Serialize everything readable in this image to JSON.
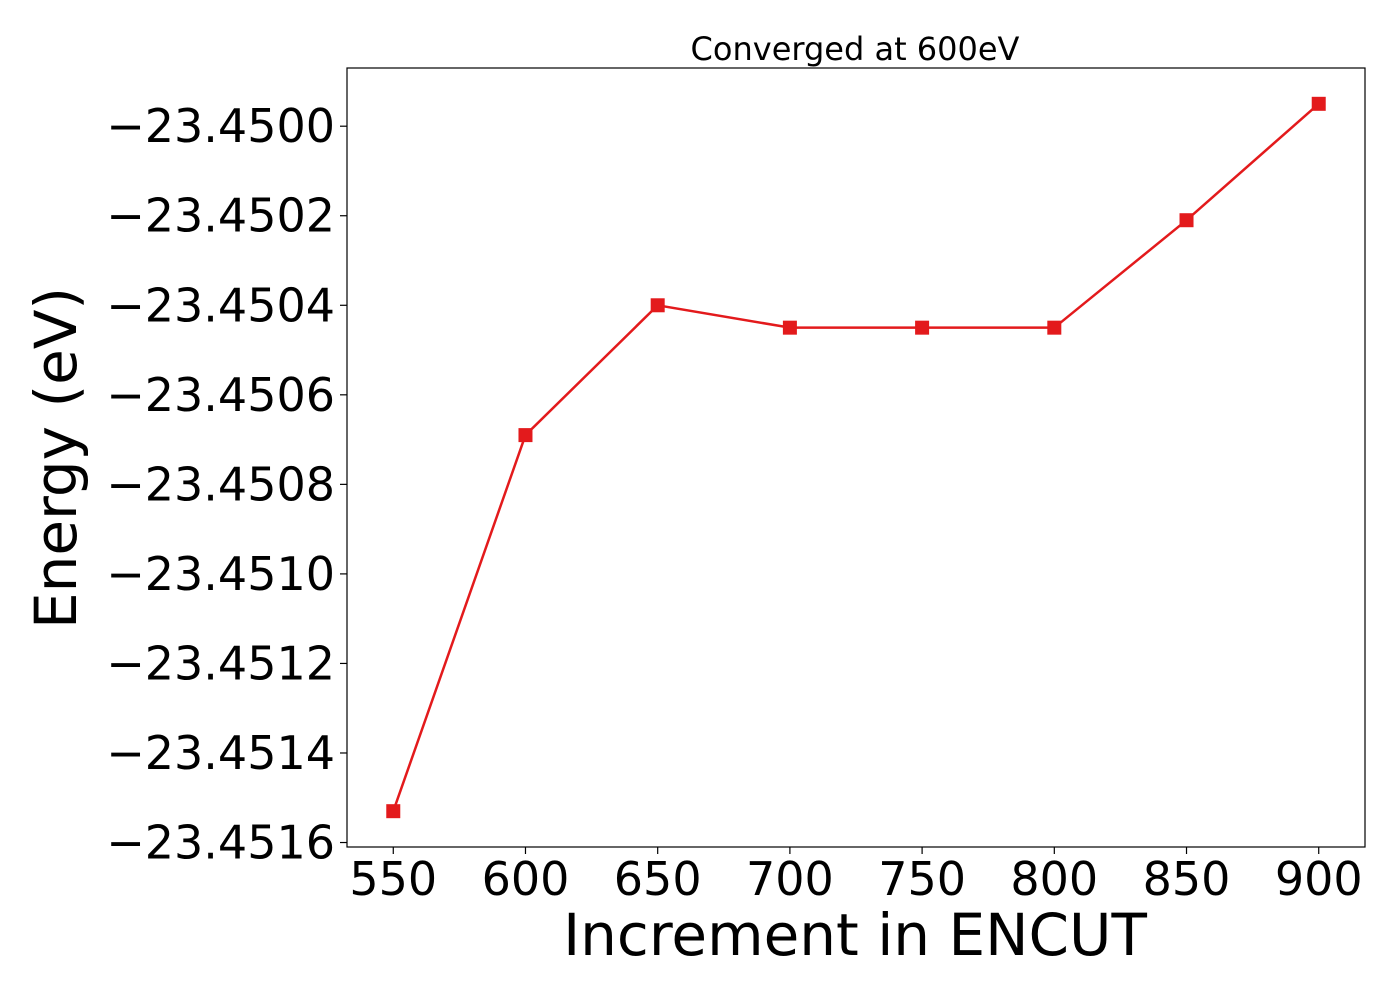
{
  "chart_data": {
    "type": "line",
    "title": "Converged at 600eV",
    "xlabel": "Increment in ENCUT",
    "ylabel": "Energy (eV)",
    "x": [
      550,
      600,
      650,
      700,
      750,
      800,
      850,
      900
    ],
    "series": [
      {
        "values": [
          -23.45153,
          -23.45069,
          -23.4504,
          -23.45045,
          -23.45045,
          -23.45045,
          -23.45021,
          -23.44995
        ],
        "color": "#e31a1c",
        "marker": "square"
      }
    ],
    "xticks": [
      550,
      600,
      650,
      700,
      750,
      800,
      850,
      900
    ],
    "xtick_labels": [
      "550",
      "600",
      "650",
      "700",
      "750",
      "800",
      "850",
      "900"
    ],
    "yticks": [
      -23.4516,
      -23.4514,
      -23.4512,
      -23.451,
      -23.4508,
      -23.4506,
      -23.4504,
      -23.4502,
      -23.45
    ],
    "ytick_labels": [
      "−23.4516",
      "−23.4514",
      "−23.4512",
      "−23.4510",
      "−23.4508",
      "−23.4506",
      "−23.4504",
      "−23.4502",
      "−23.4500"
    ],
    "xlim": [
      532.5,
      917.5
    ],
    "ylim": [
      -23.45161,
      -23.44987
    ],
    "grid": false,
    "legend": "none"
  }
}
